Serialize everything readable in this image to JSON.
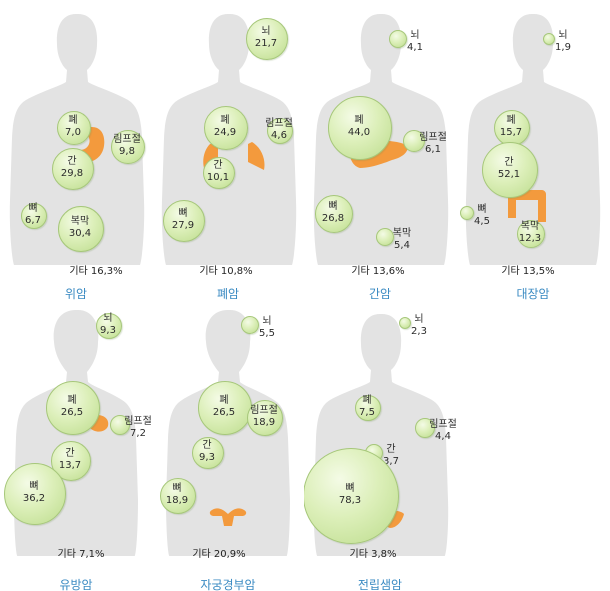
{
  "colors": {
    "silhouette": "#e3e3e3",
    "organ": "#f39a3d",
    "bubble": "#cfe6a6",
    "title": "#3a8ac2"
  },
  "panels": [
    {
      "title": "위암",
      "other": "기타 16,3%",
      "organ": "stomach",
      "gender": "male",
      "items": [
        {
          "site": "폐",
          "value": "7,0"
        },
        {
          "site": "림프절",
          "value": "9,8"
        },
        {
          "site": "간",
          "value": "29,8"
        },
        {
          "site": "뼈",
          "value": "6,7"
        },
        {
          "site": "복막",
          "value": "30,4"
        }
      ]
    },
    {
      "title": "폐암",
      "other": "기타 10,8%",
      "organ": "lungs",
      "gender": "male",
      "items": [
        {
          "site": "뇌",
          "value": "21,7"
        },
        {
          "site": "폐",
          "value": "24,9"
        },
        {
          "site": "림프절",
          "value": "4,6"
        },
        {
          "site": "간",
          "value": "10,1"
        },
        {
          "site": "뼈",
          "value": "27,9"
        }
      ]
    },
    {
      "title": "간암",
      "other": "기타 13,6%",
      "organ": "liver",
      "gender": "male",
      "items": [
        {
          "site": "뇌",
          "value": "4,1"
        },
        {
          "site": "폐",
          "value": "44,0"
        },
        {
          "site": "림프절",
          "value": "6,1"
        },
        {
          "site": "뼈",
          "value": "26,8"
        },
        {
          "site": "복막",
          "value": "5,4"
        }
      ]
    },
    {
      "title": "대장암",
      "other": "기타 13,5%",
      "organ": "colon",
      "gender": "male",
      "items": [
        {
          "site": "뇌",
          "value": "1,9"
        },
        {
          "site": "폐",
          "value": "15,7"
        },
        {
          "site": "간",
          "value": "52,1"
        },
        {
          "site": "뼈",
          "value": "4,5"
        },
        {
          "site": "복막",
          "value": "12,3"
        }
      ]
    },
    {
      "title": "유방암",
      "other": "기타 7,1%",
      "organ": "breast",
      "gender": "female",
      "items": [
        {
          "site": "뇌",
          "value": "9,3"
        },
        {
          "site": "폐",
          "value": "26,5"
        },
        {
          "site": "림프절",
          "value": "7,2"
        },
        {
          "site": "간",
          "value": "13,7"
        },
        {
          "site": "뼈",
          "value": "36,2"
        }
      ]
    },
    {
      "title": "자궁경부암",
      "other": "기타 20,9%",
      "organ": "uterus",
      "gender": "female",
      "items": [
        {
          "site": "뇌",
          "value": "5,5"
        },
        {
          "site": "폐",
          "value": "26,5"
        },
        {
          "site": "림프절",
          "value": "18,9"
        },
        {
          "site": "간",
          "value": "9,3"
        },
        {
          "site": "뼈",
          "value": "18,9"
        }
      ]
    },
    {
      "title": "전립샘암",
      "other": "기타 3,8%",
      "organ": "prostate",
      "gender": "male",
      "items": [
        {
          "site": "뇌",
          "value": "2,3"
        },
        {
          "site": "폐",
          "value": "7,5"
        },
        {
          "site": "림프절",
          "value": "4,4"
        },
        {
          "site": "간",
          "value": "3,7"
        },
        {
          "site": "뼈",
          "value": "78,3"
        }
      ]
    }
  ]
}
